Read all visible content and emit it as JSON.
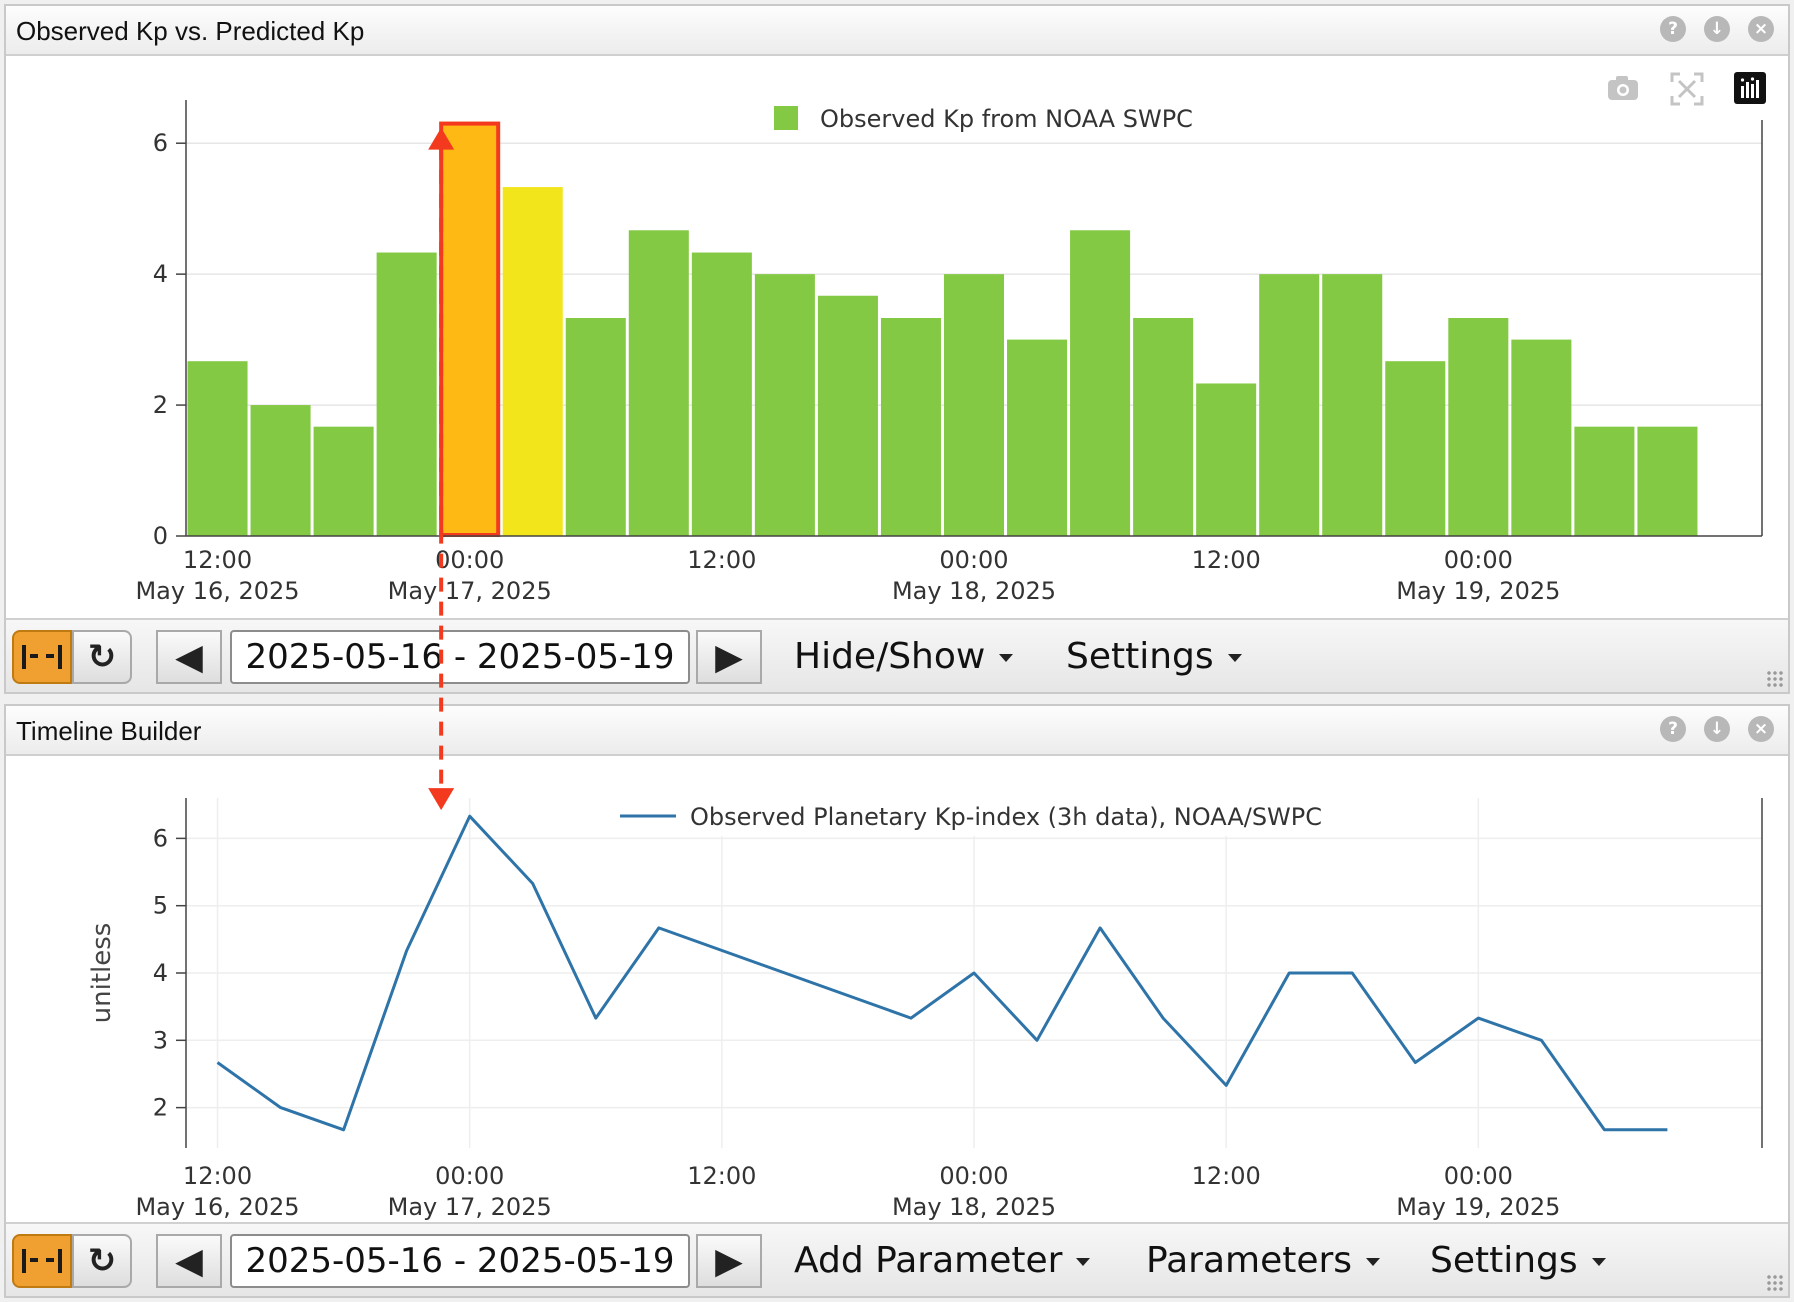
{
  "kp_panel": {
    "title": "Observed Kp vs. Predicted Kp",
    "icons": [
      "help-icon",
      "download-icon",
      "close-icon"
    ],
    "modebar": [
      "camera-icon",
      "autoscale-icon",
      "plotly-logo-icon"
    ],
    "toolbar": {
      "date_range": "2025-05-16 - 2025-05-19",
      "menu_hide_show": "Hide/Show",
      "menu_settings": "Settings"
    }
  },
  "timeline_panel": {
    "title": "Timeline Builder",
    "icons": [
      "help-icon",
      "download-icon",
      "close-icon"
    ],
    "toolbar": {
      "date_range": "2025-05-16 - 2025-05-19",
      "menu_add_parameter": "Add Parameter",
      "menu_parameters": "Parameters",
      "menu_settings": "Settings"
    }
  },
  "colors": {
    "bar_green": "#84c943",
    "bar_yellow": "#f3e51c",
    "bar_orange": "#ffb914",
    "highlight_red": "#f33a1e",
    "line_blue": "#2e74a8"
  },
  "chart_data": [
    {
      "type": "bar",
      "legend_placement": "top",
      "series": [
        {
          "name": "Observed Kp from NOAA SWPC",
          "color": "#84c943"
        }
      ],
      "x": [
        "2025-05-16T12:00",
        "2025-05-16T15:00",
        "2025-05-16T18:00",
        "2025-05-16T21:00",
        "2025-05-17T00:00",
        "2025-05-17T03:00",
        "2025-05-17T06:00",
        "2025-05-17T09:00",
        "2025-05-17T12:00",
        "2025-05-17T15:00",
        "2025-05-17T18:00",
        "2025-05-17T21:00",
        "2025-05-18T00:00",
        "2025-05-18T03:00",
        "2025-05-18T06:00",
        "2025-05-18T09:00",
        "2025-05-18T12:00",
        "2025-05-18T15:00",
        "2025-05-18T18:00",
        "2025-05-18T21:00",
        "2025-05-19T00:00",
        "2025-05-19T03:00",
        "2025-05-19T06:00",
        "2025-05-19T09:00"
      ],
      "values": [
        2.67,
        2.0,
        1.67,
        4.33,
        6.33,
        5.33,
        3.33,
        4.67,
        4.33,
        4.0,
        3.67,
        3.33,
        4.0,
        3.0,
        4.67,
        3.33,
        2.33,
        4.0,
        4.0,
        2.67,
        3.33,
        3.0,
        1.67,
        1.67
      ],
      "bar_colors": [
        "#84c943",
        "#84c943",
        "#84c943",
        "#84c943",
        "#ffb914",
        "#f3e51c",
        "#84c943",
        "#84c943",
        "#84c943",
        "#84c943",
        "#84c943",
        "#84c943",
        "#84c943",
        "#84c943",
        "#84c943",
        "#84c943",
        "#84c943",
        "#84c943",
        "#84c943",
        "#84c943",
        "#84c943",
        "#84c943",
        "#84c943",
        "#84c943"
      ],
      "highlight_index": 4,
      "ylim": [
        0,
        6.66
      ],
      "yticks": [
        "0",
        "2",
        "4",
        "6"
      ],
      "xticks": [
        {
          "time": "12:00",
          "date": "May 16, 2025",
          "x": "2025-05-16T12:00"
        },
        {
          "time": "00:00",
          "date": "May 17, 2025",
          "x": "2025-05-17T00:00"
        },
        {
          "time": "12:00",
          "date": "",
          "x": "2025-05-17T12:00"
        },
        {
          "time": "00:00",
          "date": "May 18, 2025",
          "x": "2025-05-18T00:00"
        },
        {
          "time": "12:00",
          "date": "",
          "x": "2025-05-18T12:00"
        },
        {
          "time": "00:00",
          "date": "May 19, 2025",
          "x": "2025-05-19T00:00"
        }
      ],
      "xlim": [
        "2025-05-16T10:30",
        "2025-05-19T13:30"
      ]
    },
    {
      "type": "line",
      "legend_placement": "top",
      "ylabel": "unitless",
      "series": [
        {
          "name": "Observed Planetary Kp-index (3h data), NOAA/SWPC",
          "color": "#2e74a8",
          "x": [
            "2025-05-16T12:00",
            "2025-05-16T15:00",
            "2025-05-16T18:00",
            "2025-05-16T21:00",
            "2025-05-17T00:00",
            "2025-05-17T03:00",
            "2025-05-17T06:00",
            "2025-05-17T09:00",
            "2025-05-17T21:00",
            "2025-05-18T00:00",
            "2025-05-18T03:00",
            "2025-05-18T06:00",
            "2025-05-18T09:00",
            "2025-05-18T12:00",
            "2025-05-18T15:00",
            "2025-05-18T18:00",
            "2025-05-18T21:00",
            "2025-05-19T00:00",
            "2025-05-19T03:00",
            "2025-05-19T06:00",
            "2025-05-19T09:00"
          ],
          "values": [
            2.67,
            2.0,
            1.67,
            4.33,
            6.33,
            5.33,
            3.33,
            4.67,
            3.33,
            4.0,
            3.0,
            4.67,
            3.33,
            2.33,
            4.0,
            4.0,
            2.67,
            3.33,
            3.0,
            1.67,
            1.67
          ]
        }
      ],
      "ylim": [
        1.4,
        6.6
      ],
      "yticks": [
        "2",
        "3",
        "4",
        "5",
        "6"
      ],
      "xticks": [
        {
          "time": "12:00",
          "date": "May 16, 2025",
          "x": "2025-05-16T12:00"
        },
        {
          "time": "00:00",
          "date": "May 17, 2025",
          "x": "2025-05-17T00:00"
        },
        {
          "time": "12:00",
          "date": "",
          "x": "2025-05-17T12:00"
        },
        {
          "time": "00:00",
          "date": "May 18, 2025",
          "x": "2025-05-18T00:00"
        },
        {
          "time": "12:00",
          "date": "",
          "x": "2025-05-18T12:00"
        },
        {
          "time": "00:00",
          "date": "May 19, 2025",
          "x": "2025-05-19T00:00"
        }
      ],
      "xlim": [
        "2025-05-16T10:30",
        "2025-05-19T13:30"
      ]
    }
  ]
}
